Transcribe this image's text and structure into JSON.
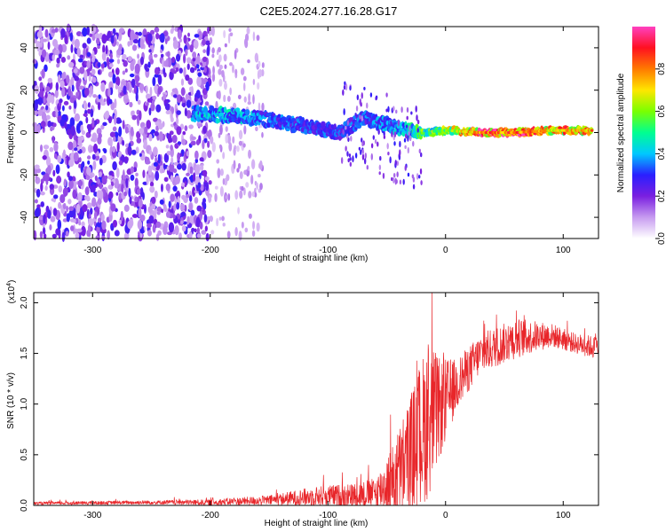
{
  "title": "C2E5.2024.277.16.28.G17",
  "chart_data": [
    {
      "type": "heatmap",
      "xlabel": "Height of straight line (km)",
      "ylabel": "Frequency (Hz)",
      "xlim": [
        -350,
        130
      ],
      "ylim": [
        -50,
        50
      ],
      "xticks": [
        -300,
        -200,
        -100,
        0,
        100
      ],
      "yticks": [
        -40,
        -20,
        0,
        20,
        40
      ],
      "colorbar": {
        "label": "Normalized spectral amplitude",
        "range": [
          0,
          1
        ],
        "ticks": [
          "0.0",
          "0.2",
          "0.4",
          "0.6",
          "0.8"
        ],
        "colors": [
          "#ffffff",
          "#c79bf0",
          "#7a1fe0",
          "#2a1fff",
          "#00c8ff",
          "#00ff90",
          "#7aff00",
          "#ffe600",
          "#ff7a00",
          "#ff1020",
          "#ff40c0"
        ]
      },
      "features": {
        "noise_region_x": [
          -350,
          -200
        ],
        "signal_track": [
          {
            "x": -215,
            "f": 9,
            "amp": 0.35
          },
          {
            "x": -180,
            "f": 8,
            "amp": 0.38
          },
          {
            "x": -150,
            "f": 6,
            "amp": 0.3
          },
          {
            "x": -120,
            "f": 3,
            "amp": 0.3
          },
          {
            "x": -90,
            "f": 0,
            "amp": 0.28
          },
          {
            "x": -70,
            "f": 7,
            "amp": 0.3
          },
          {
            "x": -40,
            "f": 2,
            "amp": 0.35
          },
          {
            "x": -20,
            "f": 0,
            "amp": 0.5
          },
          {
            "x": 0,
            "f": 1,
            "amp": 0.55
          },
          {
            "x": 30,
            "f": 0,
            "amp": 0.8
          },
          {
            "x": 60,
            "f": 0,
            "amp": 0.82
          },
          {
            "x": 90,
            "f": 1,
            "amp": 0.7
          },
          {
            "x": 125,
            "f": 1,
            "amp": 0.75
          }
        ]
      }
    },
    {
      "type": "line",
      "xlabel": "Height of straight line (km)",
      "ylabel": "SNR (10 * v/v)",
      "scale_note": "(x10",
      "scale_exp": "4",
      "scale_close": ")",
      "xlim": [
        -350,
        130
      ],
      "ylim": [
        0,
        2.1
      ],
      "xticks": [
        -300,
        -200,
        -100,
        0,
        100
      ],
      "yticks": [
        "0.0",
        "0.5",
        "1.0",
        "1.5",
        "2.0"
      ],
      "series": [
        {
          "name": "SNR",
          "color": "#e8262a",
          "envelope": [
            {
              "x": -350,
              "base": 0.02,
              "amp": 0.015
            },
            {
              "x": -250,
              "base": 0.03,
              "amp": 0.02
            },
            {
              "x": -200,
              "base": 0.03,
              "amp": 0.03
            },
            {
              "x": -150,
              "base": 0.05,
              "amp": 0.05
            },
            {
              "x": -110,
              "base": 0.09,
              "amp": 0.1
            },
            {
              "x": -80,
              "base": 0.1,
              "amp": 0.12
            },
            {
              "x": -60,
              "base": 0.12,
              "amp": 0.15
            },
            {
              "x": -45,
              "base": 0.25,
              "amp": 0.35
            },
            {
              "x": -30,
              "base": 0.5,
              "amp": 0.6
            },
            {
              "x": -15,
              "base": 0.85,
              "amp": 0.8
            },
            {
              "x": -5,
              "base": 0.95,
              "amp": 0.5
            },
            {
              "x": 10,
              "base": 1.2,
              "amp": 0.25
            },
            {
              "x": 30,
              "base": 1.5,
              "amp": 0.2
            },
            {
              "x": 60,
              "base": 1.65,
              "amp": 0.2
            },
            {
              "x": 90,
              "base": 1.68,
              "amp": 0.12
            },
            {
              "x": 110,
              "base": 1.6,
              "amp": 0.1
            },
            {
              "x": 130,
              "base": 1.55,
              "amp": 0.12
            }
          ]
        }
      ]
    }
  ]
}
